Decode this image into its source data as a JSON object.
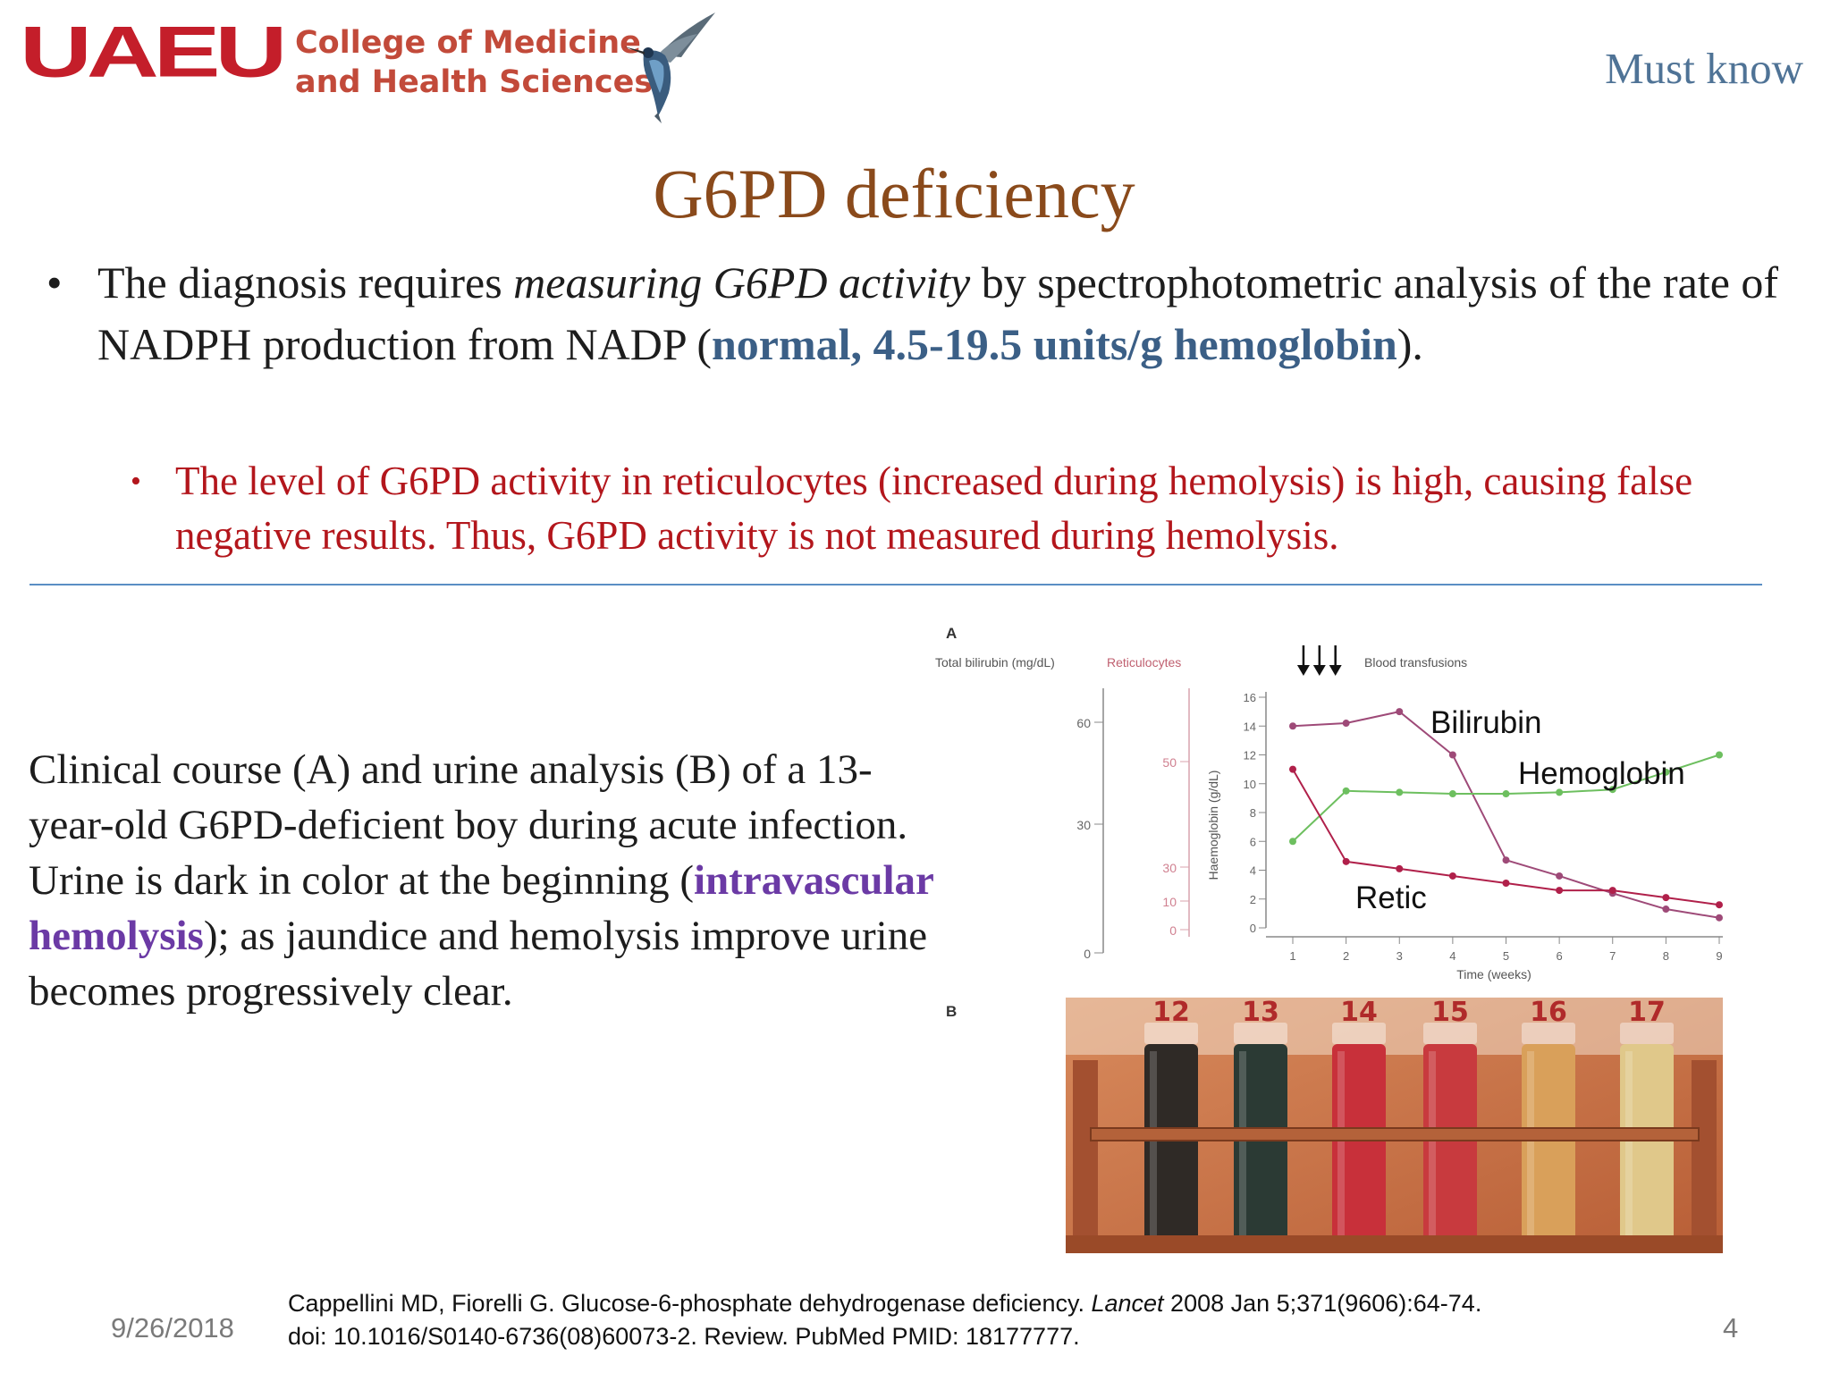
{
  "header": {
    "logo_text": "UAEU",
    "college_line1": "College of Medicine",
    "college_line2": "and Health Sciences",
    "tag": "Must know"
  },
  "title": "G6PD deficiency",
  "bullet1": {
    "part1": "The diagnosis requires ",
    "italic": "measuring G6PD activity",
    "part2": " by spectrophotometric analysis of the rate of NADPH production from NADP (",
    "highlight": "normal, 4.5-19.5 units/g hemoglobin",
    "part3": ")."
  },
  "bullet2": "The level of G6PD activity in reticulocytes (increased during hemolysis) is high, causing false negative results.  Thus, G6PD activity is not measured during hemolysis.",
  "caption": {
    "part1": "Clinical course (A) and urine analysis (B) of a 13-year-old G6PD-deficient boy during acute infection. Urine is dark in color at the beginning (",
    "highlight": "intravascular hemolysis",
    "part2": "); as jaundice and hemolysis improve urine becomes progressively clear."
  },
  "figure": {
    "panel_a_label": "A",
    "panel_b_label": "B",
    "bilirubin_axis_title": "Total bilirubin (mg/dL)",
    "bilirubin_ticks": [
      "60",
      "30",
      "0"
    ],
    "retic_axis_title": "Reticulocytes",
    "retic_ticks": [
      "50",
      "30",
      "10",
      "0"
    ],
    "hb_axis_title": "Haemoglobin (g/dL)",
    "transfusion_label": "Blood transfusions",
    "x_axis_label": "Time (weeks)",
    "tube_numbers": [
      "12",
      "13",
      "14",
      "15",
      "16",
      "17"
    ]
  },
  "chart_data": {
    "type": "line",
    "x": [
      1,
      2,
      3,
      4,
      5,
      6,
      7,
      8,
      9
    ],
    "xlabel": "Time (weeks)",
    "ylabel": "Haemoglobin (g/dL)",
    "ylim": [
      0,
      16
    ],
    "yticks": [
      0,
      2,
      4,
      6,
      8,
      10,
      12,
      14,
      16
    ],
    "series": [
      {
        "name": "Bilirubin",
        "color": "#9e4a78",
        "values": [
          14,
          14.2,
          15,
          12,
          4.7,
          3.6,
          2.4,
          1.3,
          0.7
        ]
      },
      {
        "name": "Hemoglobin",
        "color": "#6dbf5f",
        "values": [
          6,
          9.5,
          9.4,
          9.3,
          9.3,
          9.4,
          9.6,
          10.8,
          12
        ]
      },
      {
        "name": "Retic",
        "color": "#b0204a",
        "values": [
          11,
          4.6,
          4.1,
          3.6,
          3.1,
          2.6,
          2.6,
          2.1,
          1.6
        ]
      }
    ],
    "transfusion_weeks": [
      1.2,
      1.5,
      1.8
    ]
  },
  "footer": {
    "date": "9/26/2018",
    "page": "4",
    "cite_line1_a": "Cappellini MD, Fiorelli G. Glucose-6-phosphate dehydrogenase deficiency. ",
    "cite_journal": "Lancet",
    "cite_line1_b": " 2008 Jan 5;371(9606):64-74.",
    "cite_line2": "doi: 10.1016/S0140-6736(08)60073-2. Review. PubMed PMID: 18177777."
  }
}
